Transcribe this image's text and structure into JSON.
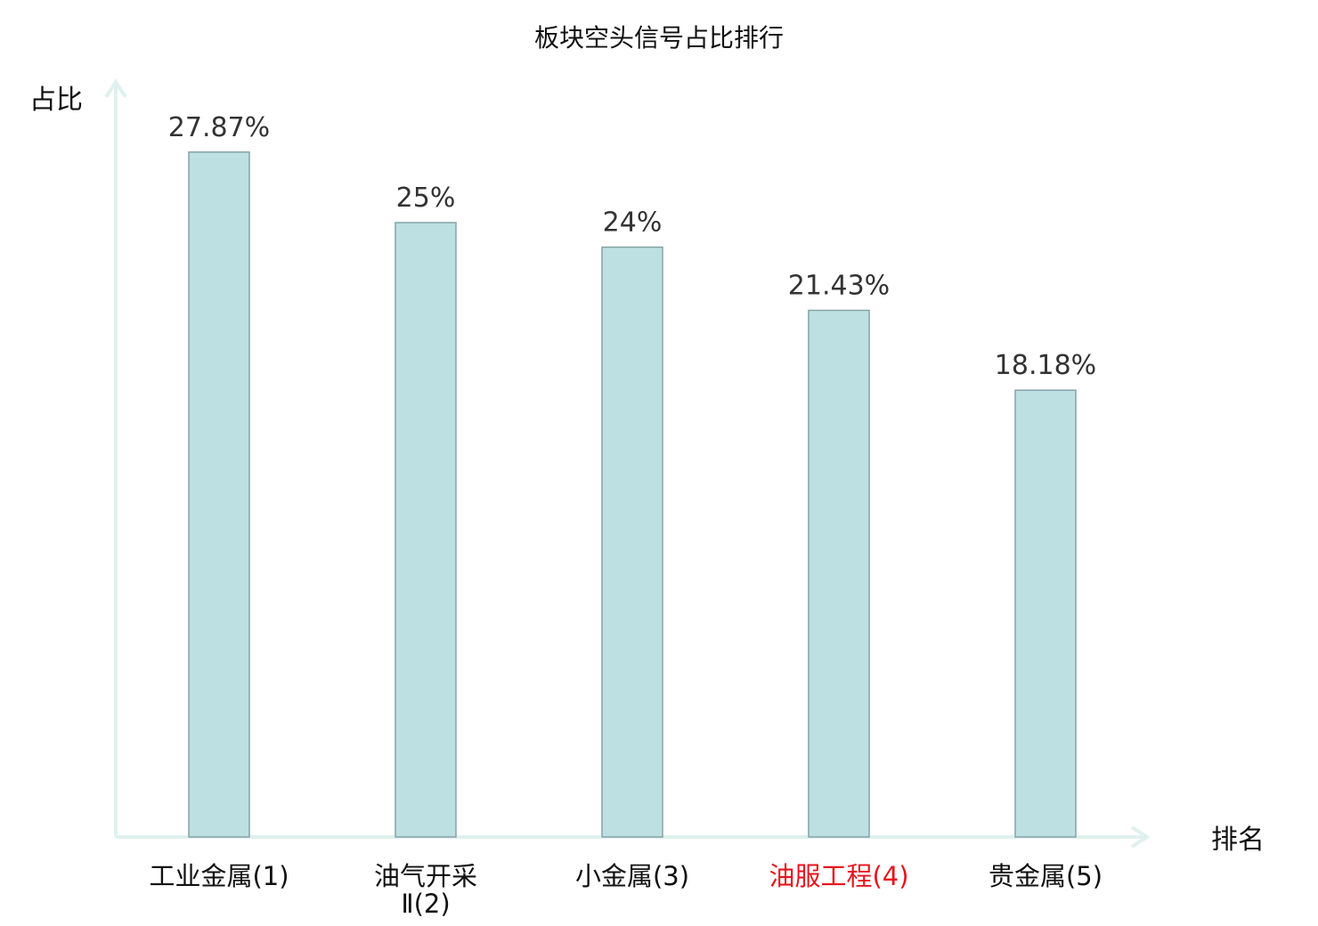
{
  "chart_data": {
    "type": "bar",
    "title": "板块空头信号占比排行",
    "xlabel": "排名",
    "ylabel": "占比",
    "ylim": [
      0,
      30
    ],
    "grid": false,
    "categories": [
      [
        "工业金属(1)"
      ],
      [
        "油气开采",
        "Ⅱ(2)"
      ],
      [
        "小金属(3)"
      ],
      [
        "油服工程(4)"
      ],
      [
        "贵金属(5)"
      ]
    ],
    "values": [
      27.87,
      25,
      24,
      21.43,
      18.18
    ],
    "value_labels": [
      "27.87%",
      "25%",
      "24%",
      "21.43%",
      "18.18%"
    ],
    "highlight_index": 3
  },
  "colors": {
    "bar_fill": "#bde1e2",
    "bar_stroke": "#86a3a6",
    "axis": "#dff1ee",
    "highlight": "#e8141c"
  }
}
